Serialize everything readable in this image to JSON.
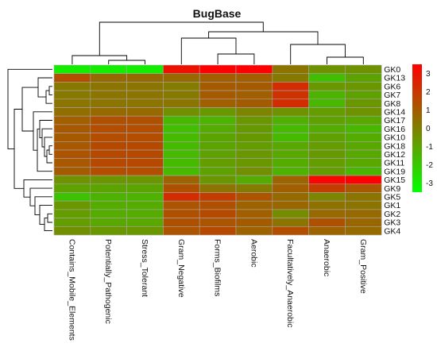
{
  "chart_data": {
    "type": "heatmap",
    "title": "BugBase",
    "columns": [
      "Contains_Mobile_Elements",
      "Potentially_Pathogenic",
      "Stress_Tolerant",
      "Gram_Negative",
      "Forms_Biofilms",
      "Aerobic",
      "Facultatively_Anaerobic",
      "Anaerobic",
      "Gram_Positive"
    ],
    "rows": [
      "GK0",
      "GK13",
      "GK6",
      "GK7",
      "GK8",
      "GK14",
      "GK17",
      "GK16",
      "GK10",
      "GK18",
      "GK12",
      "GK11",
      "GK19",
      "GK15",
      "GK9",
      "GK5",
      "GK1",
      "GK2",
      "GK3",
      "GK4"
    ],
    "values": [
      [
        -3.0,
        -3.0,
        -3.0,
        3.0,
        3.5,
        3.5,
        0.3,
        -0.5,
        -0.5
      ],
      [
        1.4,
        0.6,
        0.6,
        0.6,
        0.9,
        0.9,
        0.2,
        -1.7,
        -1.0
      ],
      [
        0.2,
        0.3,
        0.3,
        0.1,
        1.0,
        1.0,
        2.3,
        -0.6,
        -0.6
      ],
      [
        0.2,
        0.3,
        0.3,
        0.2,
        1.0,
        0.9,
        2.1,
        -1.4,
        -0.9
      ],
      [
        0.3,
        0.3,
        0.3,
        0.3,
        0.9,
        1.0,
        2.3,
        -1.5,
        -0.6
      ],
      [
        0.5,
        0.6,
        0.6,
        -0.4,
        -0.6,
        -0.1,
        -0.5,
        -0.8,
        -0.5
      ],
      [
        0.9,
        1.3,
        1.3,
        -1.5,
        -1.4,
        -0.6,
        -1.3,
        -0.9,
        -1.1
      ],
      [
        1.1,
        1.4,
        1.4,
        -1.7,
        -1.2,
        -0.7,
        -1.6,
        -1.2,
        -1.5
      ],
      [
        1.0,
        1.4,
        1.4,
        -1.6,
        -1.0,
        -0.7,
        -1.6,
        -0.9,
        -1.2
      ],
      [
        1.1,
        1.5,
        1.5,
        -1.6,
        -1.0,
        -0.8,
        -1.1,
        -0.8,
        -1.1
      ],
      [
        1.2,
        1.5,
        1.5,
        -1.6,
        -0.9,
        -0.6,
        -1.1,
        -0.7,
        -1.1
      ],
      [
        1.1,
        1.5,
        1.5,
        -1.6,
        -0.8,
        -0.6,
        -1.2,
        -0.8,
        -1.1
      ],
      [
        1.0,
        1.4,
        1.4,
        -1.6,
        -0.9,
        -0.4,
        -1.4,
        -0.8,
        -1.5
      ],
      [
        -0.5,
        -0.6,
        -0.6,
        0.8,
        -0.6,
        -1.2,
        0.8,
        3.3,
        3.5
      ],
      [
        -0.9,
        -1.0,
        -1.0,
        1.3,
        0.3,
        0.1,
        0.9,
        1.8,
        1.1
      ],
      [
        -1.8,
        -1.4,
        -1.4,
        2.3,
        1.8,
        1.2,
        0.6,
        -0.1,
        0.3
      ],
      [
        -0.6,
        -1.2,
        -1.2,
        1.2,
        1.3,
        0.8,
        0.7,
        0.4,
        0.3
      ],
      [
        -0.8,
        -1.2,
        -1.2,
        1.3,
        1.5,
        0.9,
        -0.3,
        0.6,
        0.6
      ],
      [
        -0.8,
        -1.1,
        -1.1,
        1.3,
        1.2,
        1.0,
        0.3,
        1.3,
        0.7
      ],
      [
        -0.4,
        -0.6,
        -0.6,
        1.2,
        1.5,
        0.8,
        1.4,
        0.8,
        0.6
      ]
    ],
    "colorbar": {
      "ticks": [
        3,
        2,
        1,
        0,
        -1,
        -2,
        -3
      ],
      "range": [
        -3.5,
        3.5
      ],
      "low_color": "#00ff00",
      "mid_color": "#808000",
      "high_color": "#ff0000"
    },
    "column_dendrogram": true,
    "row_dendrogram": true
  }
}
